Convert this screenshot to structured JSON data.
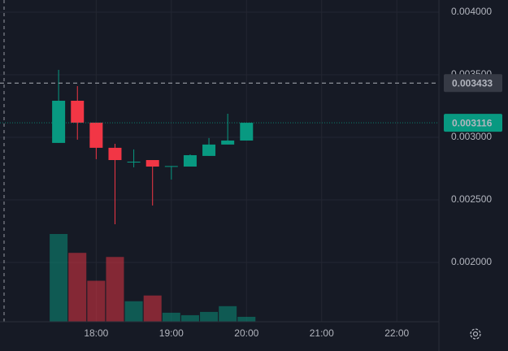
{
  "chart_data": {
    "type": "candlestick",
    "x": [
      17.5,
      17.75,
      18,
      18.25,
      18.5,
      18.75,
      19,
      19.25,
      19.5,
      19.75,
      20
    ],
    "open": [
      0.002955,
      0.003292,
      0.003117,
      0.002916,
      0.002805,
      0.002818,
      0.002766,
      0.002766,
      0.002851,
      0.002942,
      0.002974
    ],
    "high": [
      0.003539,
      0.003409,
      0.003117,
      0.002948,
      0.002903,
      0.002818,
      0.00277,
      0.002863,
      0.002994,
      0.003188,
      0.003116
    ],
    "low": [
      0.002955,
      0.002981,
      0.002825,
      0.002305,
      0.00276,
      0.002455,
      0.002662,
      0.002766,
      0.002851,
      0.002942,
      0.002974
    ],
    "close": [
      0.003292,
      0.003117,
      0.002916,
      0.002818,
      0.002805,
      0.002766,
      0.00277,
      0.002857,
      0.002942,
      0.002974,
      0.003116
    ],
    "volume": [
      107,
      84,
      50,
      79,
      25,
      32,
      11,
      8,
      12,
      19,
      6
    ],
    "up_color": "#089981",
    "down_color": "#f23645",
    "xlim": [
      16.72,
      22.56
    ],
    "xticks": [
      {
        "value": 18,
        "label": "18:00"
      },
      {
        "value": 19,
        "label": "19:00"
      },
      {
        "value": 20,
        "label": "20:00"
      },
      {
        "value": 21,
        "label": "21:00"
      },
      {
        "value": 22,
        "label": "22:00"
      }
    ],
    "ylim": [
      0.001526,
      0.004097
    ],
    "yticks": [
      {
        "value": 0.002,
        "label": "0.002000"
      },
      {
        "value": 0.0025,
        "label": "0.002500"
      },
      {
        "value": 0.003,
        "label": "0.003000"
      },
      {
        "value": 0.0035,
        "label": "0.003500"
      },
      {
        "value": 0.004,
        "label": "0.004000"
      }
    ],
    "price_lines": [
      {
        "value": 0.003433,
        "style": "dashed",
        "color": "#d1d4dc"
      },
      {
        "value": 0.003116,
        "style": "dotted",
        "color": "#089981"
      }
    ],
    "grid": true
  }
}
